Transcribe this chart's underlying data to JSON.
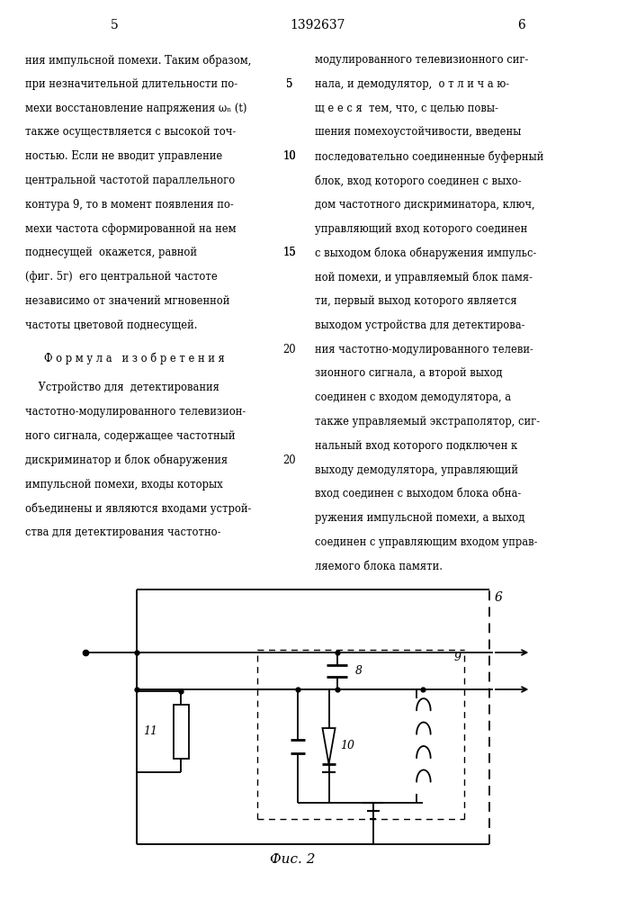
{
  "page_number_left": "5",
  "patent_number": "1392637",
  "page_number_right": "6",
  "text_left": [
    "ния импульсной помехи. Таким образом,",
    "при незначительной длительности по-",
    "мехи восстановление напряжения ωₙ (t)",
    "также осуществляется с высокой точ-",
    "ностью. Если не вводит управление",
    "центральной частотой параллельного",
    "контура 9, то в момент появления по-",
    "мехи частота сформированной на нем",
    "поднесущей  окажется, равной",
    "(фиг. 5г)  его центральной частоте",
    "независимо от значений мгновенной",
    "частоты цветовой поднесущей."
  ],
  "formula_heading": "Ф о р м у л а   и з о б р е т е н и я",
  "text_left2": [
    "    Устройство для  детектирования",
    "частотно-модулированного телевизион-",
    "ного сигнала, содержащее частотный",
    "дискриминатор и блок обнаружения",
    "импульсной помехи, входы которых",
    "объединены и являются входами устрой-",
    "ства для детектирования частотно-"
  ],
  "text_right": [
    "модулированного телевизионного сиг-",
    "нала, и демодулятор,  о т л и ч а ю-",
    "щ е е с я  тем, что, с целью повы-",
    "шения помехоустойчивости, введены",
    "последовательно соединенные буферный",
    "блок, вход которого соединен с выхо-",
    "дом частотного дискриминатора, ключ,",
    "управляющий вход которого соединен",
    "с выходом блока обнаружения импульс-",
    "ной помехи, и управляемый блок памя-",
    "ти, первый выход которого является",
    "выходом устройства для детектирова-",
    "ния частотно-модулированного телеви-",
    "зионного сигнала, а второй выход",
    "соединен с входом демодулятора, а",
    "также управляемый экстраполятор, сиг-",
    "нальный вход которого подключен к",
    "выходу демодулятора, управляющий",
    "вход соединен с выходом блока обна-",
    "ружения импульсной помехи, а выход",
    "соединен с управляющим входом управ-",
    "ляемого блока памяти."
  ],
  "fig_label": "Фuc. 2",
  "background": "#ffffff",
  "text_color": "#000000"
}
